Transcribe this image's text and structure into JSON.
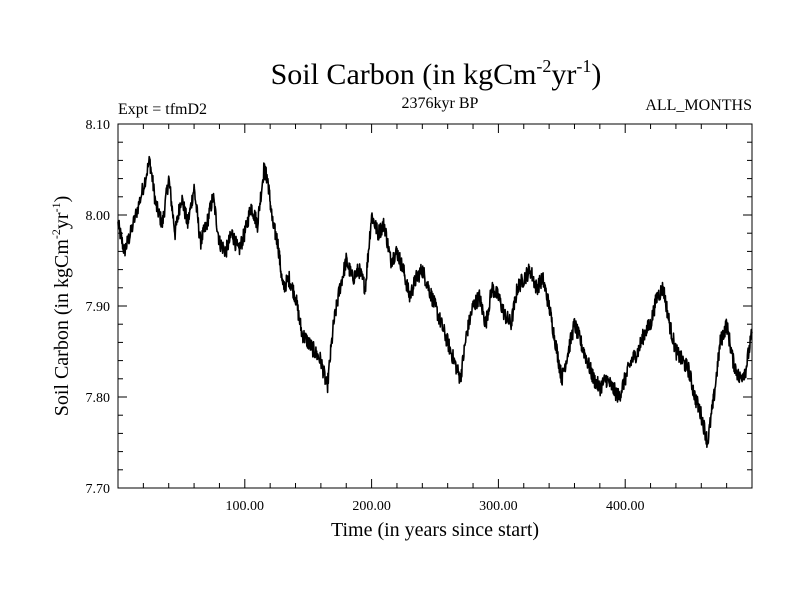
{
  "header": {
    "title_main": "Soil Carbon (in kgCm",
    "title_exp1": "-2",
    "title_mid": "yr",
    "title_exp2": "-1",
    "title_end": ")",
    "experiment": "Expt = tfmD2",
    "period": "2376kyr BP",
    "months": "ALL_MONTHS"
  },
  "chart_data": {
    "type": "line",
    "xlabel": "Time (in years since start)",
    "ylabel_parts": [
      "Soil Carbon (in kgCm",
      "-2",
      "yr",
      "-1",
      ")"
    ],
    "xlim": [
      0,
      500
    ],
    "ylim": [
      7.7,
      8.1
    ],
    "x_ticks": [
      {
        "value": 100,
        "label": "100.00"
      },
      {
        "value": 200,
        "label": "200.00"
      },
      {
        "value": 300,
        "label": "300.00"
      },
      {
        "value": 400,
        "label": "400.00"
      }
    ],
    "y_ticks": [
      {
        "value": 7.7,
        "label": "7.70"
      },
      {
        "value": 7.8,
        "label": "7.80"
      },
      {
        "value": 7.9,
        "label": "7.90"
      },
      {
        "value": 8.0,
        "label": "8.00"
      },
      {
        "value": 8.1,
        "label": "8.10"
      }
    ],
    "line_color": "#000000",
    "series": [
      {
        "x": [
          0,
          5,
          10,
          18,
          25,
          30,
          35,
          40,
          45,
          50,
          55,
          60,
          65,
          70,
          75,
          80,
          85,
          90,
          95,
          100,
          105,
          110,
          115,
          118,
          122,
          126,
          130,
          135,
          140,
          145,
          150,
          155,
          160,
          165,
          170,
          175,
          180,
          185,
          190,
          195,
          200,
          205,
          210,
          215,
          220,
          225,
          230,
          235,
          240,
          245,
          250,
          255,
          260,
          265,
          270,
          275,
          280,
          285,
          290,
          295,
          300,
          305,
          310,
          315,
          320,
          325,
          330,
          335,
          340,
          345,
          350,
          355,
          360,
          365,
          370,
          375,
          380,
          385,
          390,
          395,
          400,
          405,
          410,
          415,
          420,
          425,
          430,
          435,
          440,
          445,
          450,
          455,
          460,
          465,
          470,
          475,
          480,
          485,
          490,
          495,
          500
        ],
        "values": [
          7.99,
          7.96,
          7.98,
          8.02,
          8.06,
          8.01,
          7.99,
          8.04,
          7.98,
          8.02,
          7.99,
          8.03,
          7.97,
          7.99,
          8.02,
          7.97,
          7.96,
          7.98,
          7.96,
          7.98,
          8.01,
          7.99,
          8.05,
          8.04,
          7.99,
          7.97,
          7.92,
          7.93,
          7.91,
          7.87,
          7.86,
          7.85,
          7.84,
          7.81,
          7.88,
          7.92,
          7.95,
          7.93,
          7.94,
          7.92,
          8.0,
          7.98,
          7.99,
          7.95,
          7.96,
          7.94,
          7.91,
          7.93,
          7.94,
          7.92,
          7.9,
          7.88,
          7.86,
          7.84,
          7.82,
          7.87,
          7.9,
          7.91,
          7.88,
          7.92,
          7.91,
          7.89,
          7.88,
          7.92,
          7.93,
          7.94,
          7.92,
          7.93,
          7.9,
          7.86,
          7.82,
          7.85,
          7.88,
          7.86,
          7.84,
          7.82,
          7.81,
          7.82,
          7.81,
          7.8,
          7.82,
          7.84,
          7.85,
          7.87,
          7.88,
          7.91,
          7.92,
          7.88,
          7.85,
          7.84,
          7.83,
          7.8,
          7.78,
          7.75,
          7.8,
          7.86,
          7.88,
          7.84,
          7.82,
          7.83,
          7.87
        ]
      }
    ]
  }
}
